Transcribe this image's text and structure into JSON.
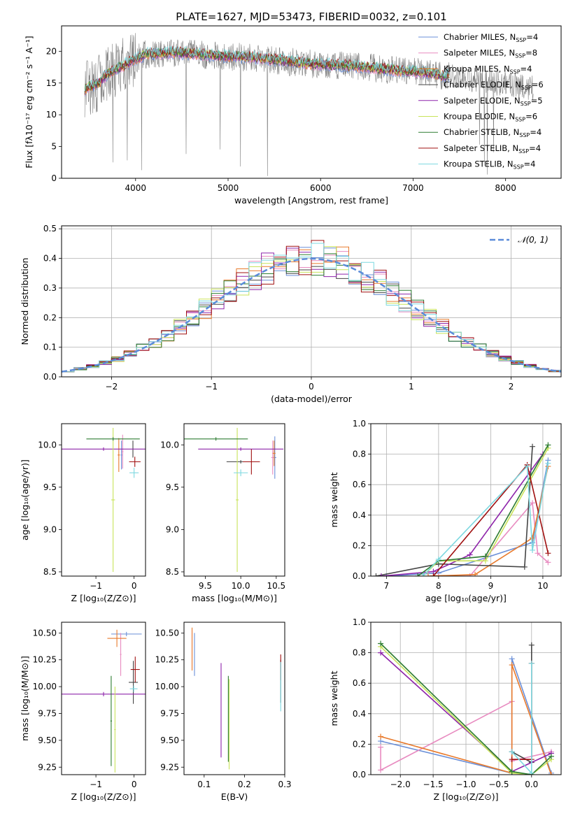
{
  "figure_title": "PLATE=1627, MJD=53473, FIBERID=0032, z=0.101",
  "model_colors": [
    "#6a8fd8",
    "#e88bc0",
    "#e87a2c",
    "#454545",
    "#8e24aa",
    "#c8e35a",
    "#2e7d32",
    "#a01010",
    "#7dd8e0"
  ],
  "chart_data": [
    {
      "id": "spectrum",
      "type": "line",
      "xlabel": "wavelength [Angstrom, rest frame]",
      "ylabel": "Flux [fλ10⁻¹⁷ erg cm⁻² s⁻¹ A⁻¹]",
      "xlim": [
        3200,
        8600
      ],
      "ylim": [
        0,
        24
      ],
      "xticks": [
        "4000",
        "5000",
        "6000",
        "7000",
        "8000"
      ],
      "yticks": [
        "0",
        "5",
        "10",
        "15",
        "20"
      ],
      "legend_position": "top-right",
      "legend": [
        {
          "base": "Chabrier MILES, N",
          "sub": "SSP",
          "tail": "=4",
          "color": "#6a8fd8"
        },
        {
          "base": "Salpeter MILES, N",
          "sub": "SSP",
          "tail": "=8",
          "color": "#e88bc0"
        },
        {
          "base": "Kroupa MILES, N",
          "sub": "SSP",
          "tail": "=4",
          "color": "#e87a2c"
        },
        {
          "base": "Chabrier ELODIE, N",
          "sub": "SSP",
          "tail": "=6",
          "color": "#454545"
        },
        {
          "base": "Salpeter ELODIE, N",
          "sub": "SSP",
          "tail": "=5",
          "color": "#8e24aa"
        },
        {
          "base": "Kroupa ELODIE, N",
          "sub": "SSP",
          "tail": "=6",
          "color": "#c8e35a"
        },
        {
          "base": "Chabrier STELIB, N",
          "sub": "SSP",
          "tail": "=4",
          "color": "#2e7d32"
        },
        {
          "base": "Salpeter STELIB, N",
          "sub": "SSP",
          "tail": "=4",
          "color": "#a01010"
        },
        {
          "base": "Kroupa STELIB, N",
          "sub": "SSP",
          "tail": "=4",
          "color": "#7dd8e0"
        }
      ],
      "continuum": {
        "x": [
          3450,
          3600,
          3700,
          3900,
          4100,
          4400,
          4700,
          5000,
          5300,
          5600,
          5900,
          6200,
          6500,
          6800,
          7000,
          7200,
          7400
        ],
        "y": [
          14,
          15,
          16.5,
          18,
          19.5,
          19.8,
          19.5,
          19.2,
          19,
          18.5,
          18,
          17.8,
          17.5,
          17,
          16.8,
          16.5,
          16
        ]
      },
      "data_color": "#808080"
    },
    {
      "id": "residual-histogram",
      "type": "histogram",
      "xlabel": "(data-model)/error",
      "ylabel": "Normed distribution",
      "xlim": [
        -2.5,
        2.5
      ],
      "ylim": [
        0,
        0.51
      ],
      "xticks": [
        "−2",
        "−1",
        "0",
        "1",
        "2"
      ],
      "yticks": [
        "0.0",
        "0.1",
        "0.2",
        "0.3",
        "0.4",
        "0.5"
      ],
      "grid": true,
      "legend_position": "top-right",
      "reference_label": "𝒩(0, 1)",
      "reference_color": "#5b8bd9",
      "bins": 40
    },
    {
      "id": "age-vs-z",
      "type": "errorbar",
      "xlabel": "Z [log₁₀(Z/Z⊙)]",
      "ylabel": "age  [log₁₀(age/yr)]",
      "xlim": [
        -1.9,
        0.3
      ],
      "ylim": [
        8.45,
        10.25
      ],
      "xticks": [
        "−1",
        "0"
      ],
      "yticks": [
        "8.5",
        "9.0",
        "9.5",
        "10.0"
      ],
      "points": [
        {
          "x": -0.33,
          "y": 9.88,
          "ex": 0.02,
          "ey": 0.17
        },
        {
          "x": -0.3,
          "y": 9.92,
          "ex": 0.02,
          "ey": 0.2
        },
        {
          "x": -0.4,
          "y": 9.88,
          "ex": 0.03,
          "ey": 0.2
        },
        {
          "x": -0.03,
          "y": 9.95,
          "ex": 0.01,
          "ey": 0.1
        },
        {
          "x": -0.8,
          "y": 9.95,
          "ex": 1.2,
          "ey": 0.02
        },
        {
          "x": -0.55,
          "y": 9.35,
          "ex": 0.05,
          "ey": 0.85
        },
        {
          "x": -0.55,
          "y": 10.07,
          "ex": 0.7,
          "ey": 0.02
        },
        {
          "x": 0.02,
          "y": 9.8,
          "ex": 0.15,
          "ey": 0.06
        },
        {
          "x": 0.0,
          "y": 9.67,
          "ex": 0.12,
          "ey": 0.06
        }
      ]
    },
    {
      "id": "age-vs-mass",
      "type": "errorbar",
      "xlabel": "mass [log₁₀(M/M⊙)]",
      "ylabel": "",
      "xlim": [
        9.2,
        10.62
      ],
      "ylim": [
        8.45,
        10.25
      ],
      "xticks": [
        "9.5",
        "10.0",
        "10.5"
      ],
      "yticks": [
        "8.5",
        "9.0",
        "9.5",
        "10.0"
      ],
      "points": [
        {
          "x": 10.48,
          "y": 9.85,
          "ex": 0.02,
          "ey": 0.25
        },
        {
          "x": 10.45,
          "y": 9.85,
          "ex": 0.02,
          "ey": 0.2
        },
        {
          "x": 10.47,
          "y": 9.9,
          "ex": 0.02,
          "ey": 0.15
        },
        {
          "x": 10.0,
          "y": 9.8,
          "ex": 0.2,
          "ey": 0.02
        },
        {
          "x": 10.0,
          "y": 9.95,
          "ex": 0.6,
          "ey": 0.02
        },
        {
          "x": 9.95,
          "y": 9.35,
          "ex": 0.02,
          "ey": 0.85
        },
        {
          "x": 9.65,
          "y": 10.07,
          "ex": 0.45,
          "ey": 0.02
        },
        {
          "x": 10.15,
          "y": 9.8,
          "ex": 0.12,
          "ey": 0.15
        },
        {
          "x": 10.0,
          "y": 9.67,
          "ex": 0.1,
          "ey": 0.04
        }
      ]
    },
    {
      "id": "weight-vs-age",
      "type": "line",
      "xlabel": "age  [log₁₀(age/yr)]",
      "ylabel": "mass weight",
      "xlim": [
        6.7,
        10.35
      ],
      "ylim": [
        0,
        1.0
      ],
      "xticks": [
        "7",
        "8",
        "9",
        "10"
      ],
      "yticks": [
        "0.0",
        "0.2",
        "0.4",
        "0.6",
        "0.8",
        "1.0"
      ],
      "grid": true,
      "series": [
        {
          "x": [
            7.0,
            8.0,
            9.8,
            10.1
          ],
          "y": [
            0.0,
            0.02,
            0.22,
            0.76
          ]
        },
        {
          "x": [
            8.0,
            8.6,
            9.8,
            9.9,
            10.1
          ],
          "y": [
            0.0,
            0.0,
            0.48,
            0.15,
            0.09
          ]
        },
        {
          "x": [
            7.8,
            8.7,
            9.8,
            10.1
          ],
          "y": [
            0.0,
            0.01,
            0.25,
            0.72
          ]
        },
        {
          "x": [
            6.8,
            8.0,
            9.65,
            9.8
          ],
          "y": [
            0.0,
            0.08,
            0.06,
            0.85
          ]
        },
        {
          "x": [
            6.9,
            7.9,
            8.6,
            10.0
          ],
          "y": [
            0.0,
            0.03,
            0.14,
            0.8
          ]
        },
        {
          "x": [
            7.7,
            8.0,
            8.9,
            10.1
          ],
          "y": [
            0.0,
            0.1,
            0.1,
            0.84
          ]
        },
        {
          "x": [
            7.6,
            8.0,
            8.9,
            10.1
          ],
          "y": [
            0.0,
            0.1,
            0.13,
            0.86
          ]
        },
        {
          "x": [
            7.9,
            9.7,
            10.1
          ],
          "y": [
            0.0,
            0.73,
            0.15
          ]
        },
        {
          "x": [
            7.7,
            8.0,
            9.7,
            9.8,
            10.1
          ],
          "y": [
            0.0,
            0.11,
            0.72,
            0.17,
            0.74
          ]
        }
      ]
    },
    {
      "id": "mass-vs-z",
      "type": "errorbar",
      "xlabel": "Z [log₁₀(Z/Z⊙)]",
      "ylabel": "mass [log₁₀(M/M⊙)]",
      "xlim": [
        -1.9,
        0.3
      ],
      "ylim": [
        9.18,
        10.6
      ],
      "xticks": [
        "−1",
        "0"
      ],
      "yticks": [
        "9.25",
        "9.50",
        "9.75",
        "10.00",
        "10.25",
        "10.50"
      ],
      "points": [
        {
          "x": -0.2,
          "y": 10.49,
          "ex": 0.4,
          "ey": 0.02
        },
        {
          "x": -0.35,
          "y": 10.3,
          "ex": 0.02,
          "ey": 0.2
        },
        {
          "x": -0.45,
          "y": 10.45,
          "ex": 0.25,
          "ey": 0.08
        },
        {
          "x": -0.02,
          "y": 10.04,
          "ex": 0.12,
          "ey": 0.2
        },
        {
          "x": -0.8,
          "y": 9.93,
          "ex": 1.1,
          "ey": 0.02
        },
        {
          "x": -0.5,
          "y": 9.6,
          "ex": 0.02,
          "ey": 0.4
        },
        {
          "x": -0.6,
          "y": 9.68,
          "ex": 0.02,
          "ey": 0.42
        },
        {
          "x": 0.03,
          "y": 10.16,
          "ex": 0.12,
          "ey": 0.12
        },
        {
          "x": -0.01,
          "y": 9.98,
          "ex": 0.1,
          "ey": 0.03
        }
      ]
    },
    {
      "id": "mass-vs-ebv",
      "type": "errorbar",
      "xlabel": "E(B-V)",
      "ylabel": "",
      "xlim": [
        0.05,
        0.3
      ],
      "ylim": [
        9.18,
        10.6
      ],
      "xticks": [
        "0.1",
        "0.2",
        "0.3"
      ],
      "yticks": [
        "9.25",
        "9.50",
        "9.75",
        "10.00",
        "10.25",
        "10.50"
      ],
      "points": [
        {
          "x": 0.076,
          "y": 10.3,
          "ex": 0.0,
          "ey": 0.2
        },
        {
          "x": 0.07,
          "y": 10.34,
          "ex": 0.0,
          "ey": 0.18
        },
        {
          "x": 0.07,
          "y": 10.35,
          "ex": 0.0,
          "ey": 0.2
        },
        {
          "x": 0.29,
          "y": 10.05,
          "ex": 0.0,
          "ey": 0.2
        },
        {
          "x": 0.142,
          "y": 9.78,
          "ex": 0.0,
          "ey": 0.44
        },
        {
          "x": 0.162,
          "y": 9.65,
          "ex": 0.0,
          "ey": 0.42
        },
        {
          "x": 0.16,
          "y": 9.7,
          "ex": 0.0,
          "ey": 0.4
        },
        {
          "x": 0.29,
          "y": 10.18,
          "ex": 0.0,
          "ey": 0.12
        },
        {
          "x": 0.29,
          "y": 10.0,
          "ex": 0.0,
          "ey": 0.23
        }
      ]
    },
    {
      "id": "weight-vs-z",
      "type": "line",
      "xlabel": "Z [log₁₀(Z/Z⊙)]",
      "ylabel": "mass weight",
      "xlim": [
        -2.45,
        0.45
      ],
      "ylim": [
        0,
        1.0
      ],
      "xticks": [
        "−2.0",
        "−1.5",
        "−1.0",
        "−0.5",
        "0.0"
      ],
      "yticks": [
        "0.0",
        "0.2",
        "0.4",
        "0.6",
        "0.8",
        "1.0"
      ],
      "grid": true,
      "series": [
        {
          "x": [
            -2.3,
            -0.3,
            -0.3,
            0.3
          ],
          "y": [
            0.22,
            0.01,
            0.76,
            0.01
          ]
        },
        {
          "x": [
            -2.3,
            -2.3,
            -0.3,
            -0.3,
            0.3
          ],
          "y": [
            0.18,
            0.03,
            0.48,
            0.09,
            0.15
          ]
        },
        {
          "x": [
            -2.3,
            -0.3,
            -0.3,
            0.3
          ],
          "y": [
            0.25,
            0.01,
            0.72,
            0.0
          ]
        },
        {
          "x": [
            -0.3,
            0.0,
            0.0
          ],
          "y": [
            0.15,
            0.08,
            0.85
          ]
        },
        {
          "x": [
            -2.3,
            -0.3,
            0.3
          ],
          "y": [
            0.8,
            0.02,
            0.14
          ]
        },
        {
          "x": [
            -2.3,
            -0.3,
            0.0,
            0.3
          ],
          "y": [
            0.84,
            0.01,
            0.0,
            0.1
          ]
        },
        {
          "x": [
            -2.3,
            -0.3,
            0.0,
            0.3
          ],
          "y": [
            0.86,
            0.02,
            0.0,
            0.12
          ]
        },
        {
          "x": [
            -0.3,
            0.0,
            0.0
          ],
          "y": [
            0.1,
            0.1,
            0.73
          ]
        },
        {
          "x": [
            -0.3,
            0.0,
            0.0
          ],
          "y": [
            0.15,
            0.01,
            0.73
          ]
        }
      ]
    }
  ]
}
